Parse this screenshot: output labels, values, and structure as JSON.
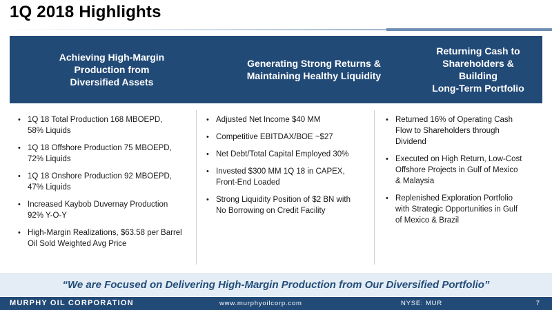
{
  "slide": {
    "title": "1Q 2018 Highlights"
  },
  "columns": [
    {
      "heading": "Achieving High-Margin\nProduction from\nDiversified Assets",
      "bullets": [
        "1Q 18 Total Production 168 MBOEPD,\n58% Liquids",
        "1Q 18 Offshore Production 75 MBOEPD,\n72% Liquids",
        "1Q 18 Onshore Production 92 MBOEPD,\n47% Liquids",
        "Increased Kaybob Duvernay Production\n92% Y-O-Y",
        "High-Margin Realizations, $63.58 per Barrel\nOil Sold Weighted Avg Price"
      ]
    },
    {
      "heading": "Generating Strong Returns &\nMaintaining Healthy Liquidity",
      "bullets": [
        "Adjusted Net Income $40 MM",
        "Competitive EBITDAX/BOE ~$27",
        "Net Debt/Total Capital Employed 30%",
        "Invested $300 MM 1Q 18 in CAPEX,\nFront-End Loaded",
        "Strong Liquidity Position of $2 BN with\nNo Borrowing on Credit Facility"
      ]
    },
    {
      "heading": "Returning Cash to\nShareholders & Building\nLong-Term Portfolio",
      "bullets": [
        "Returned 16% of Operating Cash\nFlow to Shareholders through\nDividend",
        "Executed on High Return, Low-Cost\nOffshore Projects in Gulf of Mexico\n& Malaysia",
        "Replenished Exploration Portfolio\nwith Strategic Opportunities in Gulf\nof Mexico & Brazil"
      ]
    }
  ],
  "quote": "“We are Focused on Delivering High-Margin Production from Our Diversified Portfolio”",
  "footer": {
    "company": "MURPHY OIL CORPORATION",
    "website": "www.murphyoilcorp.com",
    "ticker": "NYSE: MUR",
    "page": "7"
  },
  "bullet_glyph": "•",
  "colors": {
    "header_band": "#224a77",
    "quote_band": "#e4edf5",
    "quote_text": "#234d7a",
    "footer_band": "#224a77"
  }
}
